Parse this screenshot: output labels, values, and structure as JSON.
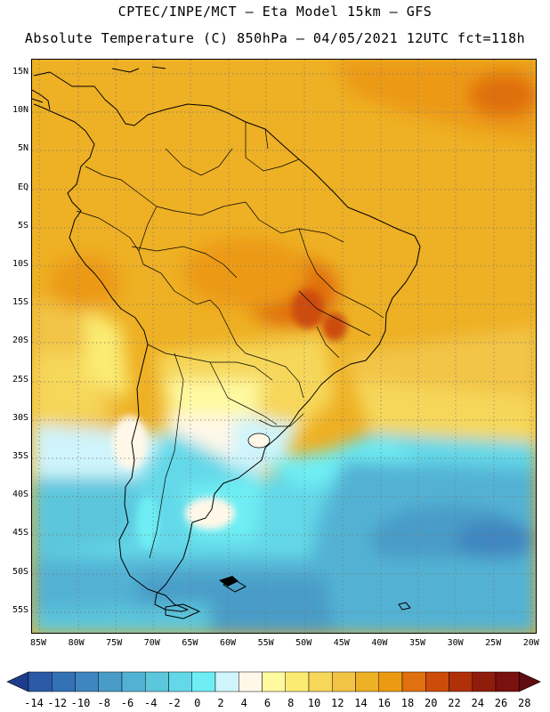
{
  "header": {
    "line1": "CPTEC/INPE/MCT –  Eta Model 15km – GFS",
    "line2": "Absolute Temperature (C) 850hPa – 04/05/2021 12UTC fct=118h"
  },
  "map": {
    "latitude_labels": [
      "15N",
      "10N",
      "5N",
      "EQ",
      "5S",
      "10S",
      "15S",
      "20S",
      "25S",
      "30S",
      "35S",
      "40S",
      "45S",
      "50S",
      "55S"
    ],
    "longitude_labels": [
      "85W",
      "80W",
      "75W",
      "70W",
      "65W",
      "60W",
      "55W",
      "50W",
      "45W",
      "40W",
      "35W",
      "30W",
      "25W",
      "20W"
    ],
    "region": "South America"
  },
  "legend": {
    "levels": [
      "-14",
      "-12",
      "-10",
      "-8",
      "-6",
      "-4",
      "-2",
      "0",
      "2",
      "4",
      "6",
      "8",
      "10",
      "12",
      "14",
      "16",
      "18",
      "20",
      "22",
      "24",
      "26",
      "28"
    ],
    "colors": [
      "#1e3c8c",
      "#2a5aa6",
      "#3470b4",
      "#3f86c0",
      "#4a9cc8",
      "#52b2d4",
      "#5cc6dc",
      "#64d8e8",
      "#6eeef4",
      "#cff4fb",
      "#fff8e8",
      "#fff9a0",
      "#fbeb72",
      "#f6d75a",
      "#f2c446",
      "#eeb024",
      "#ec9a14",
      "#e07010",
      "#cc4c0a",
      "#b0300a",
      "#901c0c",
      "#7a1010",
      "#600c10"
    ]
  }
}
